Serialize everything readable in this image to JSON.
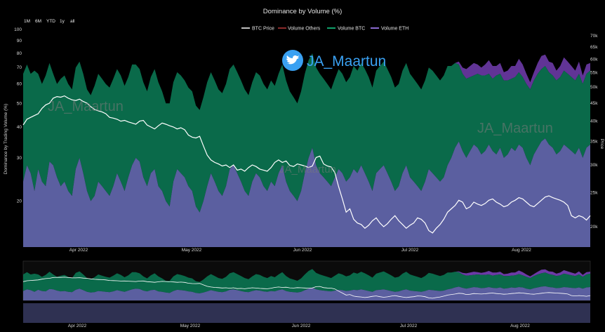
{
  "chart_data": {
    "type": "area",
    "title": "Dominance by Volume (%)",
    "ylabel": "Dominance by Trading Volume (%)",
    "y2label": "Price",
    "range_buttons": [
      "1M",
      "6M",
      "YTD",
      "1y",
      "all"
    ],
    "legend": [
      "BTC Price",
      "Volume Others",
      "Volume BTC",
      "Volume ETH"
    ],
    "colors": {
      "btc_price": "#ffffff",
      "volume_others": "#8b2a2a",
      "volume_btc": "#0a6a4a",
      "volume_eth": "#5b5fa0",
      "volume_others_fill": "#6b3aa6",
      "twitter": "#3aa1f2"
    },
    "icons": {
      "brand": "twitter-bird-icon"
    },
    "watermark": "JA_Maartun",
    "y_ticks": [
      20,
      30,
      40,
      50,
      60,
      70,
      80,
      90,
      100
    ],
    "y_log_scale": true,
    "y2_ticks": [
      "20k",
      "25k",
      "30k",
      "35k",
      "40k",
      "45k",
      "50k",
      "55k",
      "60k",
      "65k",
      "70k"
    ],
    "x_ticks": [
      "Apr 2022",
      "May 2022",
      "Jun 2022",
      "Jul 2022",
      "Aug 2022"
    ],
    "series_note": "approximate values read from chart, days from mid-Mar 2022 to late Aug 2022",
    "x_days": [
      "2022-03-14",
      "2022-08-27"
    ],
    "volume_eth_pct": [
      24,
      28,
      26,
      22,
      27,
      24,
      23,
      29,
      28,
      25,
      23,
      24,
      22,
      21,
      27,
      30,
      26,
      22,
      20,
      21,
      24,
      23,
      22,
      21,
      23,
      26,
      24,
      22,
      25,
      28,
      30,
      29,
      25,
      23,
      26,
      27,
      23,
      22,
      20,
      19,
      24,
      27,
      26,
      25,
      23,
      22,
      19,
      18,
      20,
      23,
      26,
      24,
      22,
      21,
      23,
      27,
      28,
      26,
      24,
      22,
      21,
      24,
      26,
      25,
      23,
      22,
      24,
      23,
      26,
      28,
      24,
      22,
      21,
      20,
      22,
      26,
      30,
      33,
      28,
      26,
      25,
      24,
      23,
      25,
      27,
      26,
      24,
      25,
      27,
      26,
      28,
      26,
      24,
      22,
      26,
      27,
      28,
      26,
      24,
      22,
      23,
      26,
      28,
      25,
      24,
      23,
      22,
      24,
      27,
      26,
      25,
      24,
      25,
      28,
      30,
      33,
      35,
      32,
      30,
      32,
      34,
      33,
      31,
      32,
      34,
      32,
      31,
      33,
      30,
      31,
      33,
      32,
      34,
      33,
      30,
      28,
      31,
      33,
      35,
      36,
      34,
      33,
      31,
      32,
      34,
      33,
      32,
      31,
      33,
      30,
      33,
      34
    ],
    "volume_btc_pct": [
      42,
      44,
      40,
      46,
      39,
      36,
      42,
      44,
      38,
      35,
      40,
      41,
      38,
      36,
      43,
      44,
      40,
      35,
      34,
      38,
      42,
      40,
      38,
      37,
      40,
      43,
      41,
      37,
      39,
      44,
      42,
      40,
      36,
      33,
      38,
      42,
      38,
      34,
      30,
      31,
      37,
      40,
      39,
      37,
      35,
      34,
      30,
      29,
      33,
      38,
      41,
      38,
      35,
      34,
      37,
      42,
      44,
      41,
      38,
      35,
      33,
      37,
      41,
      40,
      37,
      35,
      38,
      36,
      40,
      44,
      38,
      34,
      32,
      30,
      34,
      40,
      45,
      47,
      42,
      40,
      38,
      36,
      34,
      38,
      42,
      40,
      37,
      39,
      44,
      42,
      45,
      43,
      40,
      36,
      42,
      44,
      46,
      43,
      40,
      36,
      37,
      42,
      45,
      41,
      39,
      37,
      35,
      38,
      43,
      42,
      40,
      38,
      40,
      43,
      41,
      40,
      37,
      34,
      33,
      32,
      31,
      33,
      34,
      33,
      32,
      31,
      34,
      33,
      32,
      31,
      30,
      32,
      33,
      31,
      30,
      29,
      31,
      33,
      34,
      35,
      33,
      32,
      31,
      32,
      34,
      33,
      32,
      31,
      33,
      30,
      33,
      34
    ],
    "volume_others_pct": [
      0,
      0,
      0,
      0,
      0,
      0,
      0,
      0,
      0,
      0,
      0,
      0,
      0,
      0,
      0,
      0,
      0,
      0,
      0,
      0,
      0,
      0,
      0,
      0,
      0,
      0,
      0,
      0,
      0,
      0,
      0,
      0,
      0,
      0,
      0,
      0,
      0,
      0,
      0,
      0,
      0,
      0,
      0,
      0,
      0,
      0,
      0,
      0,
      0,
      0,
      0,
      0,
      0,
      0,
      0,
      0,
      0,
      0,
      0,
      0,
      0,
      0,
      0,
      0,
      0,
      0,
      0,
      0,
      0,
      0,
      0,
      0,
      0,
      0,
      0,
      0,
      0,
      0,
      0,
      0,
      0,
      0,
      0,
      0,
      0,
      0,
      0,
      0,
      0,
      0,
      0,
      0,
      0,
      0,
      0,
      0,
      0,
      0,
      0,
      0,
      0,
      0,
      0,
      0,
      0,
      0,
      0,
      0,
      0,
      0,
      0,
      0,
      0,
      0,
      0,
      0,
      2,
      4,
      6,
      7,
      8,
      6,
      5,
      7,
      9,
      8,
      6,
      7,
      5,
      6,
      8,
      7,
      9,
      8,
      6,
      4,
      5,
      7,
      9,
      8,
      7,
      8,
      6,
      7,
      9,
      8,
      7,
      6,
      8,
      5,
      6,
      5
    ],
    "btc_price": [
      39000,
      40500,
      41000,
      41500,
      42000,
      43500,
      44500,
      45000,
      46500,
      47000,
      46800,
      47200,
      46500,
      46000,
      45800,
      46200,
      45500,
      45000,
      44000,
      43200,
      42800,
      42500,
      42000,
      41000,
      40800,
      40500,
      40000,
      40200,
      39800,
      39500,
      39200,
      40000,
      40200,
      39000,
      38500,
      38000,
      38800,
      39500,
      39200,
      38800,
      38500,
      38000,
      38300,
      37800,
      36500,
      36000,
      35800,
      36200,
      34000,
      32000,
      31000,
      30500,
      30200,
      29800,
      30000,
      29500,
      30000,
      29000,
      29200,
      28800,
      29500,
      30000,
      29700,
      29200,
      29000,
      28800,
      29500,
      30500,
      31000,
      30500,
      30800,
      29900,
      29700,
      30200,
      30000,
      29800,
      29500,
      29800,
      31500,
      31800,
      30200,
      29800,
      29600,
      28500,
      26000,
      24000,
      22000,
      22500,
      21000,
      20500,
      20300,
      19800,
      20200,
      20800,
      21200,
      20500,
      20000,
      20400,
      21000,
      21500,
      20800,
      20300,
      19800,
      20200,
      20500,
      21200,
      21000,
      20500,
      19500,
      19200,
      19800,
      20300,
      21000,
      22000,
      22500,
      23000,
      23800,
      23500,
      22500,
      22800,
      23500,
      23200,
      23000,
      23300,
      23800,
      24000,
      23500,
      23200,
      22800,
      23000,
      23500,
      23800,
      24200,
      24000,
      23500,
      23000,
      22800,
      23300,
      23800,
      24300,
      24500,
      24200,
      24000,
      23800,
      23500,
      23000,
      21500,
      21200,
      21500,
      21300,
      20900,
      21500
    ]
  }
}
